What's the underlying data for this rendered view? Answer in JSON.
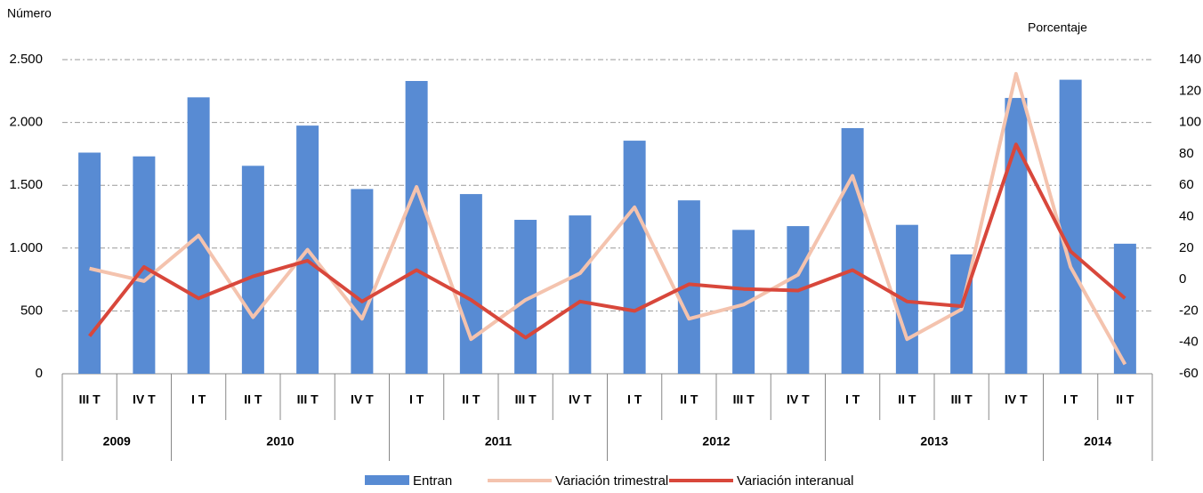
{
  "chart_data": {
    "type": "bar_line",
    "y_label": "Número",
    "y2_label": "Porcentaje",
    "categories": [
      "III T",
      "IV T",
      "I T",
      "II T",
      "III T",
      "IV T",
      "I T",
      "II T",
      "III T",
      "IV T",
      "I T",
      "II T",
      "III T",
      "IV T",
      "I T",
      "II T",
      "III T",
      "IV T",
      "I T",
      "II T"
    ],
    "years": [
      "2009",
      null,
      "2010",
      null,
      null,
      null,
      "2011",
      null,
      null,
      null,
      "2012",
      null,
      null,
      null,
      "2013",
      null,
      null,
      null,
      "2014",
      null
    ],
    "series": [
      {
        "name": "Entran",
        "type": "bar",
        "axis": "y",
        "color": "#588bd3",
        "values": [
          1760,
          1730,
          2200,
          1655,
          1975,
          1470,
          2330,
          1430,
          1225,
          1260,
          1855,
          1380,
          1145,
          1175,
          1955,
          1185,
          950,
          2195,
          2340,
          1035
        ]
      },
      {
        "name": "Variación trimestral",
        "type": "line",
        "axis": "y2",
        "color": "#f4c3ae",
        "values": [
          7,
          -1,
          28,
          -24,
          19,
          -25,
          59,
          -38,
          -13,
          4,
          46,
          -25,
          -16,
          3,
          66,
          -38,
          -19,
          131,
          8,
          -54
        ]
      },
      {
        "name": "Variación interanual",
        "type": "line",
        "axis": "y2",
        "color": "#d8473b",
        "values": [
          -36,
          8,
          -12,
          2,
          12,
          -14,
          6,
          -13,
          -37,
          -14,
          -20,
          -3,
          -6,
          -7,
          6,
          -14,
          -17,
          86,
          18,
          -12
        ]
      }
    ],
    "ylim": [
      0,
      2500
    ],
    "yticks": [
      0,
      500,
      {
        "value": 1000,
        "label": "1.000"
      },
      {
        "value": 1500,
        "label": "1.500"
      },
      {
        "value": 2000,
        "label": "2.000"
      },
      {
        "value": 2500,
        "label": "2.500"
      }
    ],
    "y2lim": [
      -60,
      140
    ],
    "y2ticks": [
      -60,
      -40,
      -20,
      0,
      20,
      40,
      60,
      80,
      100,
      120,
      140
    ],
    "grid": true,
    "legend": "bottom"
  }
}
